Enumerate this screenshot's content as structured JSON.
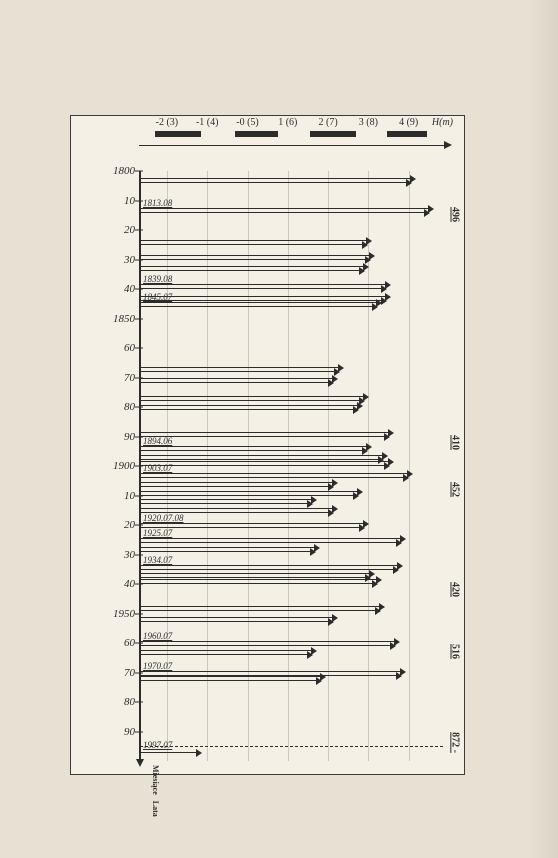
{
  "page": {
    "number_text": "",
    "headline": ""
  },
  "chart": {
    "background": "#f4f0e6",
    "frame_border": "#3b3b3b",
    "axis_color": "#2c2c2c",
    "xaxis": {
      "ticks": [
        {
          "label": "-2 (3)",
          "pos": 0.09
        },
        {
          "label": "-1 (4)",
          "pos": 0.22
        },
        {
          "label": "-0 (5)",
          "pos": 0.35
        },
        {
          "label": "1 (6)",
          "pos": 0.48
        },
        {
          "label": "2 (7)",
          "pos": 0.61
        },
        {
          "label": "3 (8)",
          "pos": 0.74
        },
        {
          "label": "4 (9)",
          "pos": 0.87
        }
      ],
      "hm_label": "H(m)"
    },
    "top_blocks": [
      {
        "from": 0.05,
        "to": 0.2
      },
      {
        "from": 0.31,
        "to": 0.45
      },
      {
        "from": 0.55,
        "to": 0.7
      },
      {
        "from": 0.8,
        "to": 0.93
      }
    ],
    "yaxis": {
      "start_year": 1800,
      "end_year": 2000,
      "ticks": [
        {
          "year": 1800,
          "label": "1800"
        },
        {
          "year": 1810,
          "label": "10"
        },
        {
          "year": 1820,
          "label": "20"
        },
        {
          "year": 1830,
          "label": "30"
        },
        {
          "year": 1840,
          "label": "40"
        },
        {
          "year": 1850,
          "label": "1850"
        },
        {
          "year": 1860,
          "label": "60"
        },
        {
          "year": 1870,
          "label": "70"
        },
        {
          "year": 1880,
          "label": "80"
        },
        {
          "year": 1890,
          "label": "90"
        },
        {
          "year": 1900,
          "label": "1900"
        },
        {
          "year": 1910,
          "label": "10"
        },
        {
          "year": 1920,
          "label": "20"
        },
        {
          "year": 1930,
          "label": "30"
        },
        {
          "year": 1940,
          "label": "40"
        },
        {
          "year": 1950,
          "label": "1950"
        },
        {
          "year": 1960,
          "label": "60"
        },
        {
          "year": 1970,
          "label": "70"
        },
        {
          "year": 1980,
          "label": "80"
        },
        {
          "year": 1990,
          "label": "90"
        }
      ],
      "bottom_label_a": "Miesiące",
      "bottom_label_b": "Lata"
    },
    "vgrid": [
      0.09,
      0.22,
      0.35,
      0.48,
      0.61,
      0.74,
      0.87
    ],
    "events": [
      {
        "year": 1803,
        "len": 0.87,
        "double": true
      },
      {
        "year": 1813.08,
        "len": 0.93,
        "label": "1813.08",
        "double": true
      },
      {
        "year": 1824,
        "len": 0.73,
        "double": true
      },
      {
        "year": 1829,
        "len": 0.74,
        "double": true
      },
      {
        "year": 1833,
        "len": 0.72,
        "double": true
      },
      {
        "year": 1839.08,
        "len": 0.79,
        "label": "1839.08",
        "double": true
      },
      {
        "year": 1843,
        "len": 0.79,
        "double": true
      },
      {
        "year": 1845.07,
        "len": 0.76,
        "label": "1845.07",
        "double": true
      },
      {
        "year": 1867,
        "len": 0.64,
        "double": true
      },
      {
        "year": 1871,
        "len": 0.62,
        "double": true
      },
      {
        "year": 1877,
        "len": 0.72,
        "double": true
      },
      {
        "year": 1880,
        "len": 0.7,
        "double": true
      },
      {
        "year": 1889,
        "len": 0.8,
        "double": true
      },
      {
        "year": 1894.06,
        "len": 0.73,
        "label": "1894.06",
        "double": true
      },
      {
        "year": 1897,
        "len": 0.78,
        "double": true
      },
      {
        "year": 1899,
        "len": 0.8,
        "double": true
      },
      {
        "year": 1903.07,
        "len": 0.86,
        "label": "1903.07",
        "double": true
      },
      {
        "year": 1906,
        "len": 0.62,
        "double": true
      },
      {
        "year": 1909,
        "len": 0.7,
        "double": true
      },
      {
        "year": 1912,
        "len": 0.55,
        "double": true
      },
      {
        "year": 1915,
        "len": 0.62,
        "double": true
      },
      {
        "year": 1920.0708,
        "len": 0.72,
        "label": "1920.07.08",
        "double": true
      },
      {
        "year": 1925.07,
        "len": 0.84,
        "label": "1925.07",
        "double": true
      },
      {
        "year": 1928,
        "len": 0.56,
        "double": true
      },
      {
        "year": 1934.07,
        "len": 0.83,
        "label": "1934.07",
        "double": true
      },
      {
        "year": 1937,
        "len": 0.74,
        "double": true
      },
      {
        "year": 1939,
        "len": 0.76,
        "double": true
      },
      {
        "year": 1948,
        "len": 0.77,
        "double": true
      },
      {
        "year": 1952,
        "len": 0.62,
        "double": true
      },
      {
        "year": 1960.07,
        "len": 0.82,
        "label": "1960.07",
        "double": true
      },
      {
        "year": 1963,
        "len": 0.55,
        "double": true
      },
      {
        "year": 1970.07,
        "len": 0.84,
        "label": "1970.07",
        "double": true
      },
      {
        "year": 1972,
        "len": 0.58,
        "double": true
      },
      {
        "year": 1997.07,
        "len": 0.18,
        "label": "1997.07",
        "double": false
      }
    ],
    "dashed_line_year": 1995,
    "right_labels": [
      {
        "year": 1813,
        "text": "496"
      },
      {
        "year": 1890,
        "text": "410"
      },
      {
        "year": 1906,
        "text": "452"
      },
      {
        "year": 1940,
        "text": "420"
      },
      {
        "year": 1961,
        "text": "516"
      },
      {
        "year": 1992,
        "text": "872 -"
      }
    ]
  }
}
